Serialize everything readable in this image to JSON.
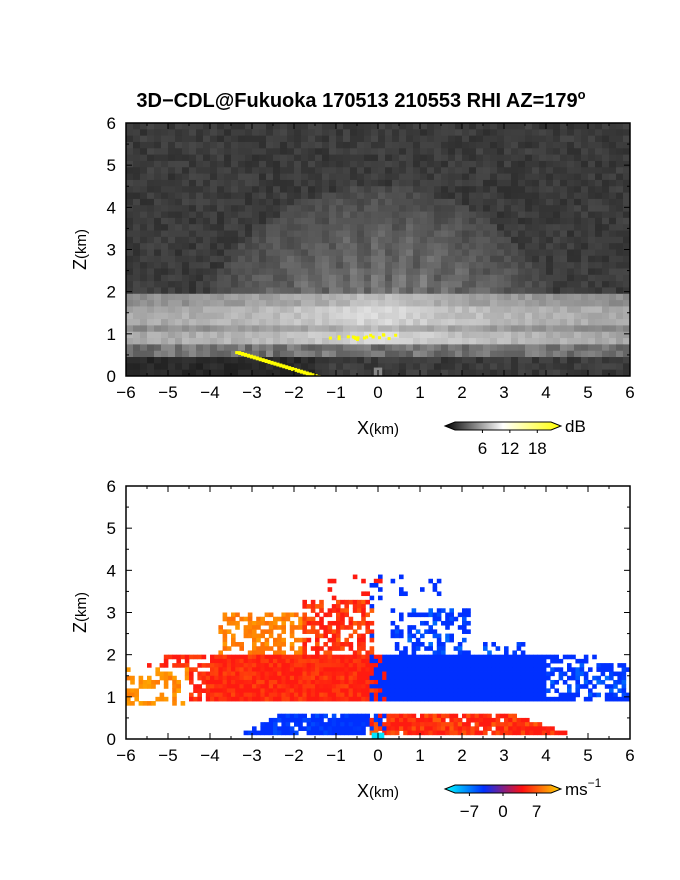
{
  "figure": {
    "title_main": "3D−CDL@Fukuoka 170513 210553 RHI AZ=179",
    "title_superscript": "o"
  },
  "chart_data": [
    {
      "type": "heatmap",
      "name": "backscatter",
      "xlabel_main": "X",
      "xlabel_unit": "(km)",
      "ylabel_main": "Z",
      "ylabel_unit": "(km)",
      "xlim": [
        -6,
        6
      ],
      "ylim": [
        0,
        6
      ],
      "x_ticks": [
        "−6",
        "−5",
        "−4",
        "−3",
        "−2",
        "−1",
        "0",
        "1",
        "2",
        "3",
        "4",
        "5",
        "6"
      ],
      "y_ticks": [
        "0",
        "1",
        "2",
        "3",
        "4",
        "5",
        "6"
      ],
      "colorbar": {
        "unit": "dB",
        "unit_superscript": "",
        "tick_labels": [
          "6",
          "12",
          "18"
        ],
        "range": [
          0,
          21
        ],
        "colors": [
          "#000000",
          "#ffffff",
          "#ffff00"
        ]
      },
      "features": {
        "mixed_layer_top_km": 2.0,
        "bright_layer_km": [
          0.8,
          1.7
        ],
        "saturated_yellow": "ground clutter x=-3.5 to -1.5 km, layer near z=1 km"
      }
    },
    {
      "type": "heatmap",
      "name": "doppler_velocity",
      "xlabel_main": "X",
      "xlabel_unit": "(km)",
      "ylabel_main": "Z",
      "ylabel_unit": "(km)",
      "xlim": [
        -6,
        6
      ],
      "ylim": [
        0,
        6
      ],
      "x_ticks": [
        "−6",
        "−5",
        "−4",
        "−3",
        "−2",
        "−1",
        "0",
        "1",
        "2",
        "3",
        "4",
        "5",
        "6"
      ],
      "y_ticks": [
        "0",
        "1",
        "2",
        "3",
        "4",
        "5",
        "6"
      ],
      "colorbar": {
        "unit": "ms",
        "unit_superscript": "−1",
        "tick_labels": [
          "−7",
          "0",
          "7"
        ],
        "range": [
          -10,
          10
        ],
        "colors": [
          "#00ffff",
          "#0030ff",
          "#ff1010",
          "#ffd700"
        ]
      },
      "features": {
        "negative_side": "x < 0 mostly red/orange (receding, positive velocity) between z=1 and 2 km",
        "positive_side": "x > 0 mostly blue (approaching, negative velocity) between z=1 and 2 km",
        "low_level_reversal_km": 0.5
      }
    }
  ]
}
